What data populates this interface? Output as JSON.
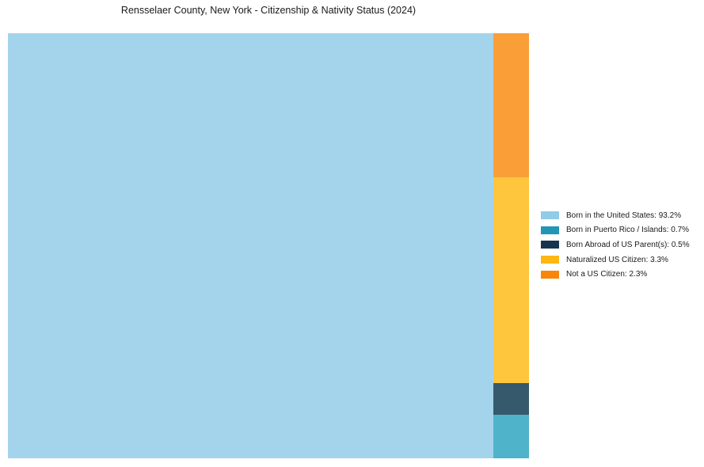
{
  "chart_data": {
    "type": "treemap",
    "title": "Rensselaer County, New York - Citizenship & Nativity Status (2024)",
    "legend_position": "right-center",
    "background": "#ffffff",
    "items": [
      {
        "label": "Born in the United States",
        "value_pct": 93.2,
        "legend_label": "Born in the United States: 93.2%",
        "fill": "#A4D3EC",
        "legend_color": "#90CBE7"
      },
      {
        "label": "Born in Puerto Rico / Islands",
        "value_pct": 0.7,
        "legend_label": "Born in Puerto Rico / Islands: 0.7%",
        "fill": "#4FB3C9",
        "legend_color": "#2296B5"
      },
      {
        "label": "Born Abroad of US Parent(s)",
        "value_pct": 0.5,
        "legend_label": "Born Abroad of US Parent(s): 0.5%",
        "fill": "#36596B",
        "legend_color": "#17344F"
      },
      {
        "label": "Naturalized US Citizen",
        "value_pct": 3.3,
        "legend_label": "Naturalized US Citizen: 3.3%",
        "fill": "#FEC63C",
        "legend_color": "#FCB713"
      },
      {
        "label": "Not a US Citizen",
        "value_pct": 2.3,
        "legend_label": "Not a US Citizen: 2.3%",
        "fill": "#FA9E38",
        "legend_color": "#F8860B"
      }
    ]
  }
}
